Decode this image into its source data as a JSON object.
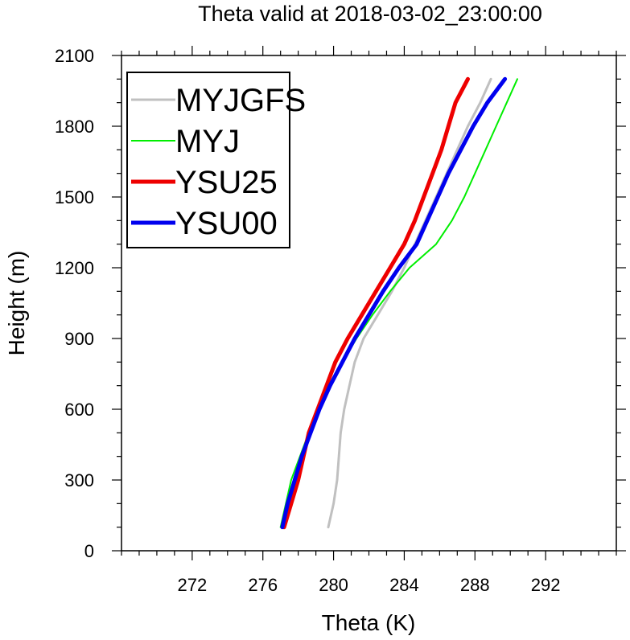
{
  "chart_data": {
    "type": "line",
    "title": "Theta valid at 2018-03-02_23:00:00",
    "xlabel": "Theta (K)",
    "ylabel": "Height (m)",
    "xlim": [
      268,
      296
    ],
    "ylim": [
      0,
      2100
    ],
    "xticks": [
      272,
      276,
      280,
      284,
      288,
      292
    ],
    "yticks": [
      0,
      300,
      600,
      900,
      1200,
      1500,
      1800,
      2100
    ],
    "legend_position": "top-left",
    "series": [
      {
        "name": "MYJGFS",
        "color": "#c0c0c0",
        "width": 3,
        "points": [
          [
            279.7,
            100
          ],
          [
            280.0,
            200
          ],
          [
            280.2,
            300
          ],
          [
            280.3,
            400
          ],
          [
            280.4,
            500
          ],
          [
            280.6,
            600
          ],
          [
            280.9,
            700
          ],
          [
            281.2,
            800
          ],
          [
            281.7,
            900
          ],
          [
            282.5,
            1000
          ],
          [
            283.3,
            1100
          ],
          [
            284.0,
            1200
          ],
          [
            284.6,
            1300
          ],
          [
            285.2,
            1400
          ],
          [
            285.8,
            1500
          ],
          [
            286.4,
            1600
          ],
          [
            287.0,
            1700
          ],
          [
            287.6,
            1800
          ],
          [
            288.3,
            1900
          ],
          [
            288.9,
            2000
          ]
        ]
      },
      {
        "name": "MYJ",
        "color": "#00ee00",
        "width": 2,
        "points": [
          [
            277.0,
            100
          ],
          [
            277.3,
            200
          ],
          [
            277.6,
            300
          ],
          [
            278.1,
            400
          ],
          [
            278.6,
            500
          ],
          [
            279.2,
            600
          ],
          [
            279.8,
            700
          ],
          [
            280.5,
            800
          ],
          [
            281.3,
            900
          ],
          [
            282.2,
            1000
          ],
          [
            283.2,
            1100
          ],
          [
            284.3,
            1200
          ],
          [
            285.8,
            1300
          ],
          [
            286.7,
            1400
          ],
          [
            287.4,
            1500
          ],
          [
            288.0,
            1600
          ],
          [
            288.6,
            1700
          ],
          [
            289.2,
            1800
          ],
          [
            289.8,
            1900
          ],
          [
            290.4,
            2000
          ]
        ]
      },
      {
        "name": "YSU25",
        "color": "#ee0000",
        "width": 5,
        "points": [
          [
            277.2,
            100
          ],
          [
            277.6,
            200
          ],
          [
            278.0,
            300
          ],
          [
            278.3,
            400
          ],
          [
            278.6,
            500
          ],
          [
            279.1,
            600
          ],
          [
            279.6,
            700
          ],
          [
            280.1,
            800
          ],
          [
            280.8,
            900
          ],
          [
            281.6,
            1000
          ],
          [
            282.4,
            1100
          ],
          [
            283.2,
            1200
          ],
          [
            284.0,
            1300
          ],
          [
            284.6,
            1400
          ],
          [
            285.1,
            1500
          ],
          [
            285.6,
            1600
          ],
          [
            286.1,
            1700
          ],
          [
            286.5,
            1800
          ],
          [
            286.9,
            1900
          ],
          [
            287.6,
            2000
          ]
        ]
      },
      {
        "name": "YSU00",
        "color": "#0000ee",
        "width": 5,
        "points": [
          [
            277.1,
            100
          ],
          [
            277.4,
            200
          ],
          [
            277.8,
            300
          ],
          [
            278.2,
            400
          ],
          [
            278.7,
            500
          ],
          [
            279.2,
            600
          ],
          [
            279.8,
            700
          ],
          [
            280.5,
            800
          ],
          [
            281.2,
            900
          ],
          [
            282.0,
            1000
          ],
          [
            282.8,
            1100
          ],
          [
            283.7,
            1200
          ],
          [
            284.7,
            1300
          ],
          [
            285.3,
            1400
          ],
          [
            285.9,
            1500
          ],
          [
            286.5,
            1600
          ],
          [
            287.2,
            1700
          ],
          [
            287.9,
            1800
          ],
          [
            288.7,
            1900
          ],
          [
            289.7,
            2000
          ]
        ]
      }
    ]
  }
}
